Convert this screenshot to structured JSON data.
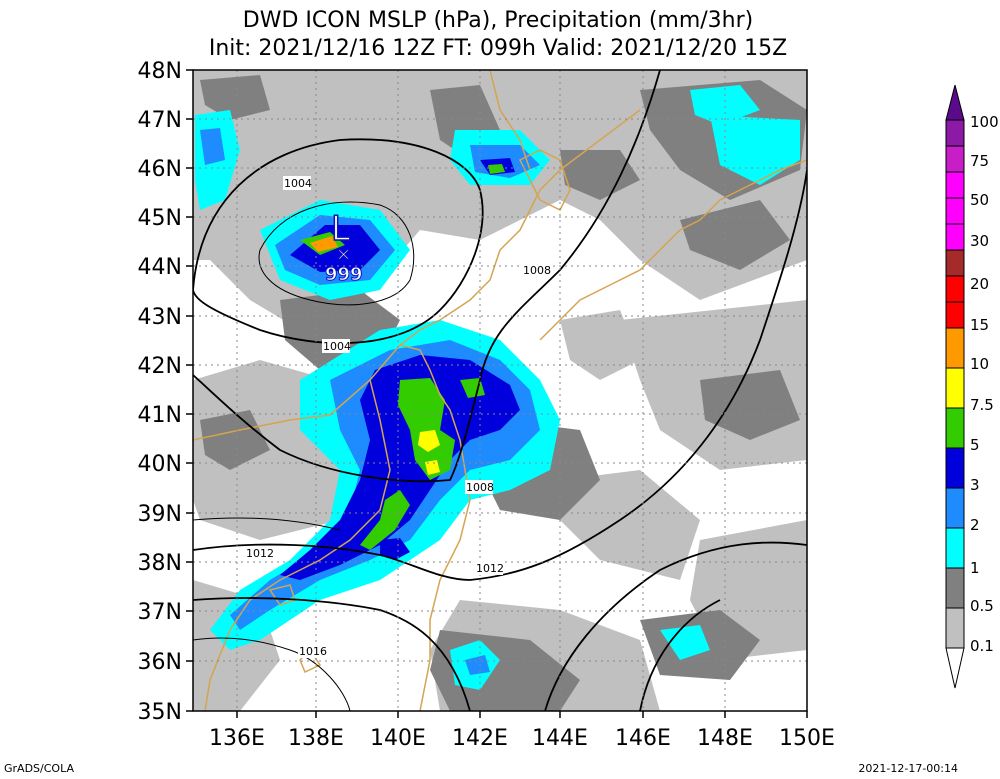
{
  "header": {
    "title_line1": "DWD ICON MSLP (hPa), Precipitation (mm/3hr)",
    "title_line2": "Init: 2021/12/16 12Z  FT: 099h  Valid: 2021/12/20 15Z"
  },
  "map": {
    "lat_labels": [
      "48N",
      "47N",
      "46N",
      "45N",
      "44N",
      "43N",
      "42N",
      "41N",
      "40N",
      "39N",
      "38N",
      "37N",
      "36N",
      "35N"
    ],
    "lon_labels": [
      "136E",
      "138E",
      "140E",
      "142E",
      "144E",
      "146E",
      "148E",
      "150E"
    ],
    "low_center": {
      "symbol": "L",
      "pressure": "999"
    },
    "isobar_labels": [
      "1004",
      "1004",
      "1008",
      "1008",
      "1012",
      "1012",
      "1016"
    ]
  },
  "colorbar": {
    "labels": [
      "100",
      "75",
      "50",
      "30",
      "20",
      "15",
      "10",
      "7.5",
      "5",
      "3",
      "2",
      "1",
      "0.5",
      "0.1"
    ],
    "colors": [
      "#5a0a8a",
      "#8c1aa6",
      "#c81ec8",
      "#ff00ff",
      "#a52a2a",
      "#ff0000",
      "#ff9900",
      "#ffff00",
      "#33cc00",
      "#0000dd",
      "#1e8cff",
      "#00ffff",
      "#808080",
      "#c0c0c0",
      "#ffffff"
    ]
  },
  "footer": {
    "left": "GrADS/COLA",
    "right": "2021-12-17-00:14"
  }
}
